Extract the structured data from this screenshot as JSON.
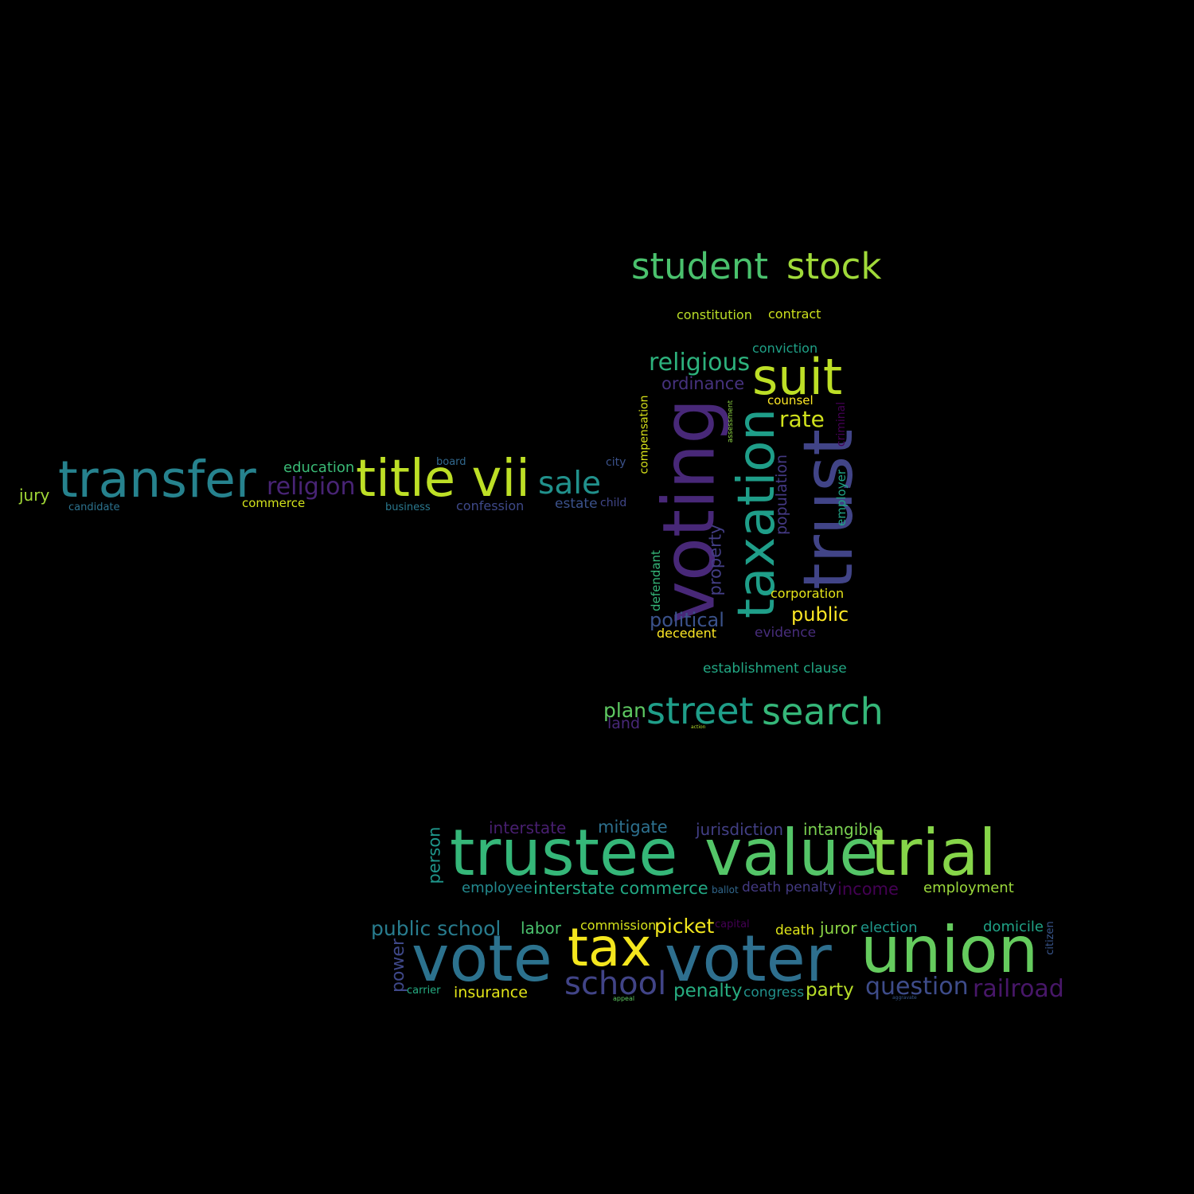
{
  "background": "#000000",
  "words": [
    {
      "text": "student",
      "color": "#4ac16d"
    },
    {
      "text": "stock",
      "color": "#a0da39"
    },
    {
      "text": "constitution",
      "color": "#bade28"
    },
    {
      "text": "contract",
      "color": "#cde11d"
    },
    {
      "text": "conviction",
      "color": "#1fa187"
    },
    {
      "text": "religious",
      "color": "#2db27d"
    },
    {
      "text": "suit",
      "color": "#bddf26"
    },
    {
      "text": "ordinance",
      "color": "#46327e"
    },
    {
      "text": "counsel",
      "color": "#fde725"
    },
    {
      "text": "rate",
      "color": "#d0e11c"
    },
    {
      "text": "compensation",
      "color": "#d8e219"
    },
    {
      "text": "voting",
      "color": "#482878"
    },
    {
      "text": "assessment",
      "color": "#8fd744"
    },
    {
      "text": "taxation",
      "color": "#1f9e89"
    },
    {
      "text": "trust",
      "color": "#414487"
    },
    {
      "text": "criminal",
      "color": "#440154"
    },
    {
      "text": "population",
      "color": "#443983"
    },
    {
      "text": "employer",
      "color": "#20a486"
    },
    {
      "text": "property",
      "color": "#433e85"
    },
    {
      "text": "defendant",
      "color": "#35b779"
    },
    {
      "text": "corporation",
      "color": "#e5e419"
    },
    {
      "text": "public",
      "color": "#fde725"
    },
    {
      "text": "political",
      "color": "#3b528b"
    },
    {
      "text": "decedent",
      "color": "#fde725"
    },
    {
      "text": "evidence",
      "color": "#472d7b"
    },
    {
      "text": "establishment clause",
      "color": "#22a884"
    },
    {
      "text": "plan",
      "color": "#5ec962"
    },
    {
      "text": "land",
      "color": "#482878"
    },
    {
      "text": "street",
      "color": "#1f9e89"
    },
    {
      "text": "search",
      "color": "#35b779"
    },
    {
      "text": "action",
      "color": "#b5de2b"
    },
    {
      "text": "transfer",
      "color": "#26828e"
    },
    {
      "text": "title vii",
      "color": "#bddf26"
    },
    {
      "text": "sale",
      "color": "#21918c"
    },
    {
      "text": "religion",
      "color": "#482475"
    },
    {
      "text": "education",
      "color": "#3aba76"
    },
    {
      "text": "board",
      "color": "#31688e"
    },
    {
      "text": "city",
      "color": "#3b528b"
    },
    {
      "text": "jury",
      "color": "#a2da37"
    },
    {
      "text": "candidate",
      "color": "#2c728e"
    },
    {
      "text": "commerce",
      "color": "#d2e21b"
    },
    {
      "text": "business",
      "color": "#2a788e"
    },
    {
      "text": "confession",
      "color": "#3e4989"
    },
    {
      "text": "estate",
      "color": "#3b528b"
    },
    {
      "text": "child",
      "color": "#404688"
    },
    {
      "text": "interstate",
      "color": "#481f70"
    },
    {
      "text": "mitigate",
      "color": "#2d708e"
    },
    {
      "text": "jurisdiction",
      "color": "#423f85"
    },
    {
      "text": "intangible",
      "color": "#7ad151"
    },
    {
      "text": "person",
      "color": "#1f968b"
    },
    {
      "text": "trustee",
      "color": "#35b779"
    },
    {
      "text": "value",
      "color": "#54c568"
    },
    {
      "text": "trial",
      "color": "#86d549"
    },
    {
      "text": "employee",
      "color": "#23898e"
    },
    {
      "text": "interstate commerce",
      "color": "#22a884"
    },
    {
      "text": "ballot",
      "color": "#31688e"
    },
    {
      "text": "death penalty",
      "color": "#443a83"
    },
    {
      "text": "income",
      "color": "#440154"
    },
    {
      "text": "employment",
      "color": "#9bd93c"
    },
    {
      "text": "public school",
      "color": "#287c8e"
    },
    {
      "text": "labor",
      "color": "#4ac16d"
    },
    {
      "text": "commission",
      "color": "#d5e21a"
    },
    {
      "text": "picket",
      "color": "#f1e51d"
    },
    {
      "text": "capital",
      "color": "#440154"
    },
    {
      "text": "death",
      "color": "#dde318"
    },
    {
      "text": "juror",
      "color": "#8bd646"
    },
    {
      "text": "election",
      "color": "#1f988b"
    },
    {
      "text": "domicile",
      "color": "#20a386"
    },
    {
      "text": "citizen",
      "color": "#39568c"
    },
    {
      "text": "power",
      "color": "#3f4889"
    },
    {
      "text": "vote",
      "color": "#2c728e"
    },
    {
      "text": "tax",
      "color": "#f4e61e"
    },
    {
      "text": "voter",
      "color": "#2e6f8e"
    },
    {
      "text": "union",
      "color": "#65cb5e"
    },
    {
      "text": "carrier",
      "color": "#25ac82"
    },
    {
      "text": "insurance",
      "color": "#e2e418"
    },
    {
      "text": "school",
      "color": "#414487"
    },
    {
      "text": "appeal",
      "color": "#5ec962"
    },
    {
      "text": "penalty",
      "color": "#27ad81"
    },
    {
      "text": "congress",
      "color": "#21918c"
    },
    {
      "text": "party",
      "color": "#b8de29"
    },
    {
      "text": "question",
      "color": "#3e4c8a"
    },
    {
      "text": "aggravate",
      "color": "#38588c"
    },
    {
      "text": "railroad",
      "color": "#481769"
    }
  ]
}
